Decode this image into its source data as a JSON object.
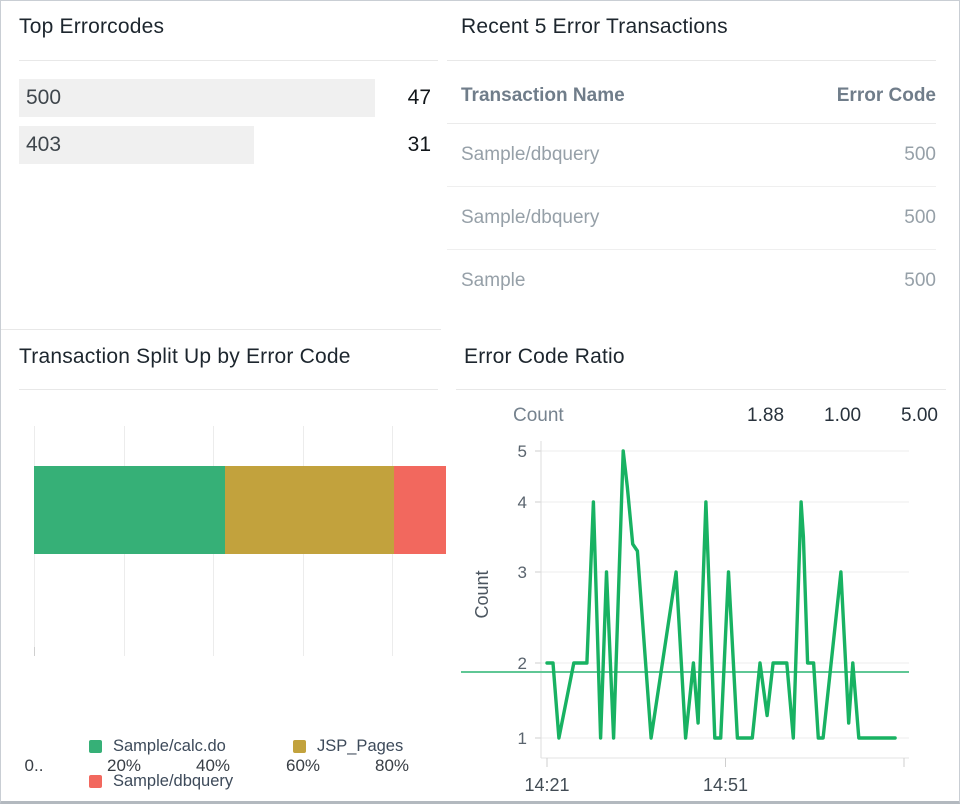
{
  "panels": {
    "top_errorcodes": {
      "title": "Top Errorcodes",
      "bars": [
        {
          "label": "500",
          "value": 47
        },
        {
          "label": "403",
          "value": 31
        }
      ],
      "max_value": 47,
      "bar_color": "#f0f0f0"
    },
    "recent_errors": {
      "title": "Recent 5 Error Transactions",
      "columns": [
        "Transaction Name",
        "Error Code"
      ],
      "rows": [
        {
          "name": "Sample/dbquery",
          "code": "500"
        },
        {
          "name": "Sample/dbquery",
          "code": "500"
        },
        {
          "name": "Sample",
          "code": "500"
        }
      ]
    },
    "split_up": {
      "title": "Transaction Split Up by Error Code"
    },
    "error_ratio": {
      "title": "Error Code Ratio",
      "stats": {
        "label": "Count",
        "avg": "1.88",
        "min": "1.00",
        "max": "5.00"
      }
    }
  },
  "chart_data": [
    {
      "type": "bar",
      "variant": "stacked-horizontal-percent",
      "title": "Transaction Split Up by Error Code",
      "series": [
        {
          "name": "Sample/calc.do",
          "value": 43.4,
          "color": "#36b077"
        },
        {
          "name": "JSP_Pages",
          "value": 38.2,
          "color": "#c2a23d"
        },
        {
          "name": "Sample/dbquery",
          "value": 11.8,
          "color": "#f2685e"
        }
      ],
      "x_ticks": [
        "0..",
        "20%",
        "40%",
        "60%",
        "80%"
      ],
      "x_tick_values": [
        0,
        20,
        40,
        60,
        80
      ],
      "axis_max_percent": 92,
      "legend_position": "bottom",
      "grid": true
    },
    {
      "type": "line",
      "title": "Error Code Ratio",
      "ylabel": "Count",
      "ylim": [
        1,
        5
      ],
      "y_ticks": [
        1,
        2,
        3,
        4,
        5
      ],
      "x_tick_minutes": [
        0,
        30,
        60
      ],
      "x_tick_labels": [
        "14:21",
        "14:51",
        ""
      ],
      "x_domain_minutes": [
        0,
        61
      ],
      "average": 1.88,
      "min": 1.0,
      "max": 5.0,
      "line_color": "#18b262",
      "average_line_color": "#5fc795",
      "points": [
        [
          0,
          2
        ],
        [
          1,
          2
        ],
        [
          2,
          1
        ],
        [
          4.5,
          2
        ],
        [
          6.7,
          2
        ],
        [
          7.8,
          4
        ],
        [
          9,
          1
        ],
        [
          10,
          3
        ],
        [
          11.2,
          1
        ],
        [
          12.8,
          5
        ],
        [
          13.5,
          4.3
        ],
        [
          14.4,
          3.4
        ],
        [
          15.2,
          3.3
        ],
        [
          17.5,
          1
        ],
        [
          21.7,
          3
        ],
        [
          23.3,
          1
        ],
        [
          24.6,
          2
        ],
        [
          25.4,
          1.2
        ],
        [
          26.7,
          4
        ],
        [
          28.2,
          1
        ],
        [
          29.2,
          1
        ],
        [
          30.5,
          3
        ],
        [
          32,
          1
        ],
        [
          34.5,
          1
        ],
        [
          35.8,
          2
        ],
        [
          37,
          1.3
        ],
        [
          38,
          2
        ],
        [
          40.3,
          2
        ],
        [
          41.4,
          1
        ],
        [
          42.7,
          4
        ],
        [
          43.1,
          3.5
        ],
        [
          43.8,
          2
        ],
        [
          44.8,
          2
        ],
        [
          45.6,
          1
        ],
        [
          46.4,
          1
        ],
        [
          49.4,
          3
        ],
        [
          50.7,
          1.2
        ],
        [
          51.4,
          2
        ],
        [
          52.4,
          1
        ],
        [
          58.5,
          1
        ]
      ]
    }
  ]
}
